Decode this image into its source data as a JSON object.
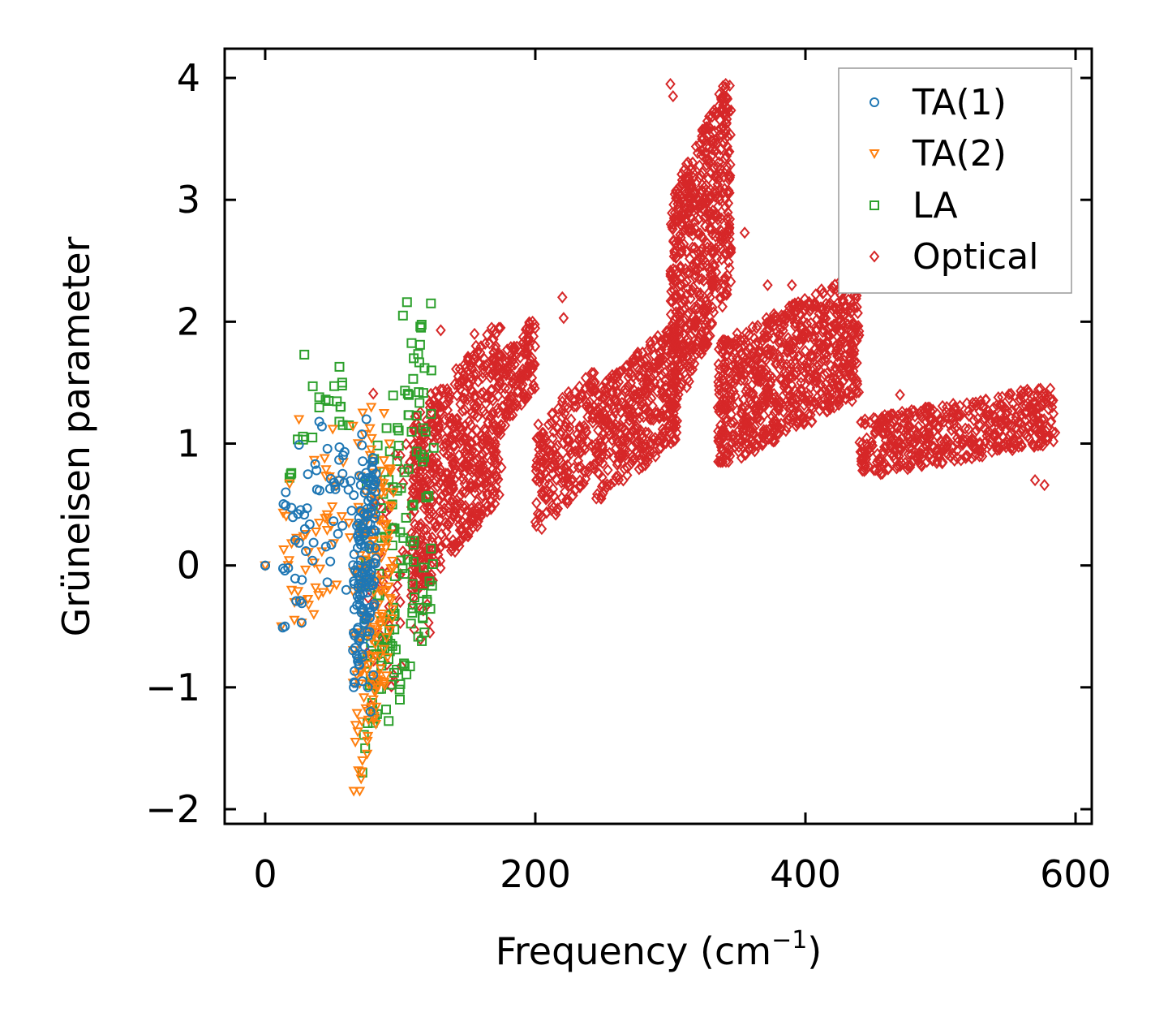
{
  "chart_data": {
    "type": "scatter",
    "title": "",
    "xlabel": "Frequency (cm",
    "xlabel_sup": "−1",
    "xlabel_close": ")",
    "ylabel": "Grüneisen parameter",
    "xlim": [
      -30,
      612
    ],
    "ylim": [
      -2.12,
      4.24
    ],
    "x_ticks": [
      0,
      200,
      400,
      600
    ],
    "y_ticks": [
      -2,
      -1,
      0,
      1,
      2,
      3,
      4
    ],
    "x_tick_labels": [
      "0",
      "200",
      "400",
      "600"
    ],
    "y_tick_labels": [
      "−2",
      "−1",
      "0",
      "1",
      "2",
      "3",
      "4"
    ],
    "legend_position": "top-right",
    "series": [
      {
        "name": "TA(1)",
        "marker": "circle",
        "color": "#1f77b4",
        "clusters": [
          {
            "x": [
              0,
              0
            ],
            "y": [
              0,
              0
            ],
            "n": 1
          },
          {
            "x": [
              12,
              75
            ],
            "y": [
              -0.5,
              1.2
            ],
            "n": 60
          },
          {
            "x": [
              65,
              82
            ],
            "y": [
              -1.0,
              0.9
            ],
            "n": 140
          }
        ],
        "points": [
          [
            0,
            0
          ],
          [
            13,
            -0.51
          ],
          [
            17,
            -0.02
          ],
          [
            25,
            0.99
          ],
          [
            27,
            -0.47
          ],
          [
            31,
            0.47
          ],
          [
            35,
            0.04
          ],
          [
            38,
            0.78
          ],
          [
            40,
            1.18
          ],
          [
            42,
            1.14
          ],
          [
            48,
            0.63
          ],
          [
            55,
            0.97
          ],
          [
            60,
            -0.2
          ],
          [
            64,
            0.45
          ],
          [
            72,
            -0.95
          ],
          [
            76,
            -1.0
          ],
          [
            80,
            -0.9
          ],
          [
            78,
            -1.2
          ]
        ]
      },
      {
        "name": "TA(2)",
        "marker": "triangle_down",
        "color": "#ff7f0e",
        "clusters": [
          {
            "x": [
              0,
              0
            ],
            "y": [
              0,
              0
            ],
            "n": 1
          },
          {
            "x": [
              12,
              85
            ],
            "y": [
              -0.5,
              1.3
            ],
            "n": 70
          },
          {
            "x": [
              65,
              95
            ],
            "y": [
              -1.85,
              1.1
            ],
            "n": 150
          }
        ],
        "points": [
          [
            0,
            0
          ],
          [
            12,
            -0.5
          ],
          [
            25,
            1.2
          ],
          [
            27,
            -0.47
          ],
          [
            32,
            0.11
          ],
          [
            36,
            -0.4
          ],
          [
            40,
            0.35
          ],
          [
            44,
            0.88
          ],
          [
            50,
            1.12
          ],
          [
            55,
            0.7
          ],
          [
            70,
            -1.85
          ],
          [
            71,
            -1.75
          ],
          [
            72,
            -1.6
          ],
          [
            76,
            -1.4
          ],
          [
            80,
            -1.1
          ],
          [
            88,
            1.25
          ],
          [
            92,
            1.0
          ],
          [
            95,
            0.6
          ]
        ]
      },
      {
        "name": "LA",
        "marker": "square",
        "color": "#2ca02c",
        "clusters": [
          {
            "x": [
              18,
              60
            ],
            "y": [
              0.7,
              1.75
            ],
            "n": 15
          },
          {
            "x": [
              72,
              125
            ],
            "y": [
              -1.75,
              2.15
            ],
            "n": 150
          }
        ],
        "points": [
          [
            18,
            0.72
          ],
          [
            29,
            1.73
          ],
          [
            35,
            1.05
          ],
          [
            40,
            1.38
          ],
          [
            47,
            1.35
          ],
          [
            55,
            1.63
          ],
          [
            57,
            1.5
          ],
          [
            62,
            1.15
          ],
          [
            72,
            -1.7
          ],
          [
            74,
            -1.5
          ],
          [
            80,
            -1.2
          ],
          [
            90,
            -0.6
          ],
          [
            95,
            0.3
          ],
          [
            102,
            2.05
          ],
          [
            105,
            2.16
          ],
          [
            110,
            1.7
          ],
          [
            118,
            1.62
          ],
          [
            123,
            1.6
          ]
        ]
      },
      {
        "name": "Optical",
        "marker": "diamond",
        "color": "#d62728",
        "clusters": [
          {
            "x": [
              75,
              135
            ],
            "y": [
              -1.2,
              1.5
            ],
            "n": 90
          },
          {
            "x": [
              108,
              175
            ],
            "y": [
              -0.2,
              1.95
            ],
            "n": 600
          },
          {
            "x": [
              175,
              200
            ],
            "y": [
              1.15,
              2.02
            ],
            "n": 120
          },
          {
            "x": [
              200,
              245
            ],
            "y": [
              0.3,
              1.6
            ],
            "n": 220
          },
          {
            "x": [
              245,
              305
            ],
            "y": [
              0.55,
              1.95
            ],
            "n": 400
          },
          {
            "x": [
              300,
              345
            ],
            "y": [
              1.3,
              3.95
            ],
            "n": 600
          },
          {
            "x": [
              335,
              440
            ],
            "y": [
              0.85,
              2.35
            ],
            "n": 800
          },
          {
            "x": [
              440,
              585
            ],
            "y": [
              0.75,
              1.45
            ],
            "n": 500
          }
        ],
        "points": [
          [
            78,
            -1.15
          ],
          [
            80,
            1.41
          ],
          [
            85,
            0.1
          ],
          [
            95,
            -0.9
          ],
          [
            100,
            -0.3
          ],
          [
            108,
            -0.25
          ],
          [
            120,
            -0.32
          ],
          [
            121,
            -0.47
          ],
          [
            122,
            -0.55
          ],
          [
            130,
            1.93
          ],
          [
            155,
            1.9
          ],
          [
            198,
            2.0
          ],
          [
            220,
            2.2
          ],
          [
            221,
            2.03
          ],
          [
            300,
            3.95
          ],
          [
            302,
            3.85
          ],
          [
            313,
            2.88
          ],
          [
            330,
            3.22
          ],
          [
            340,
            2.56
          ],
          [
            355,
            2.73
          ],
          [
            372,
            2.3
          ],
          [
            390,
            2.3
          ],
          [
            470,
            1.4
          ],
          [
            500,
            1.02
          ],
          [
            570,
            0.7
          ],
          [
            577,
            0.66
          ],
          [
            585,
            1.09
          ]
        ]
      }
    ]
  }
}
